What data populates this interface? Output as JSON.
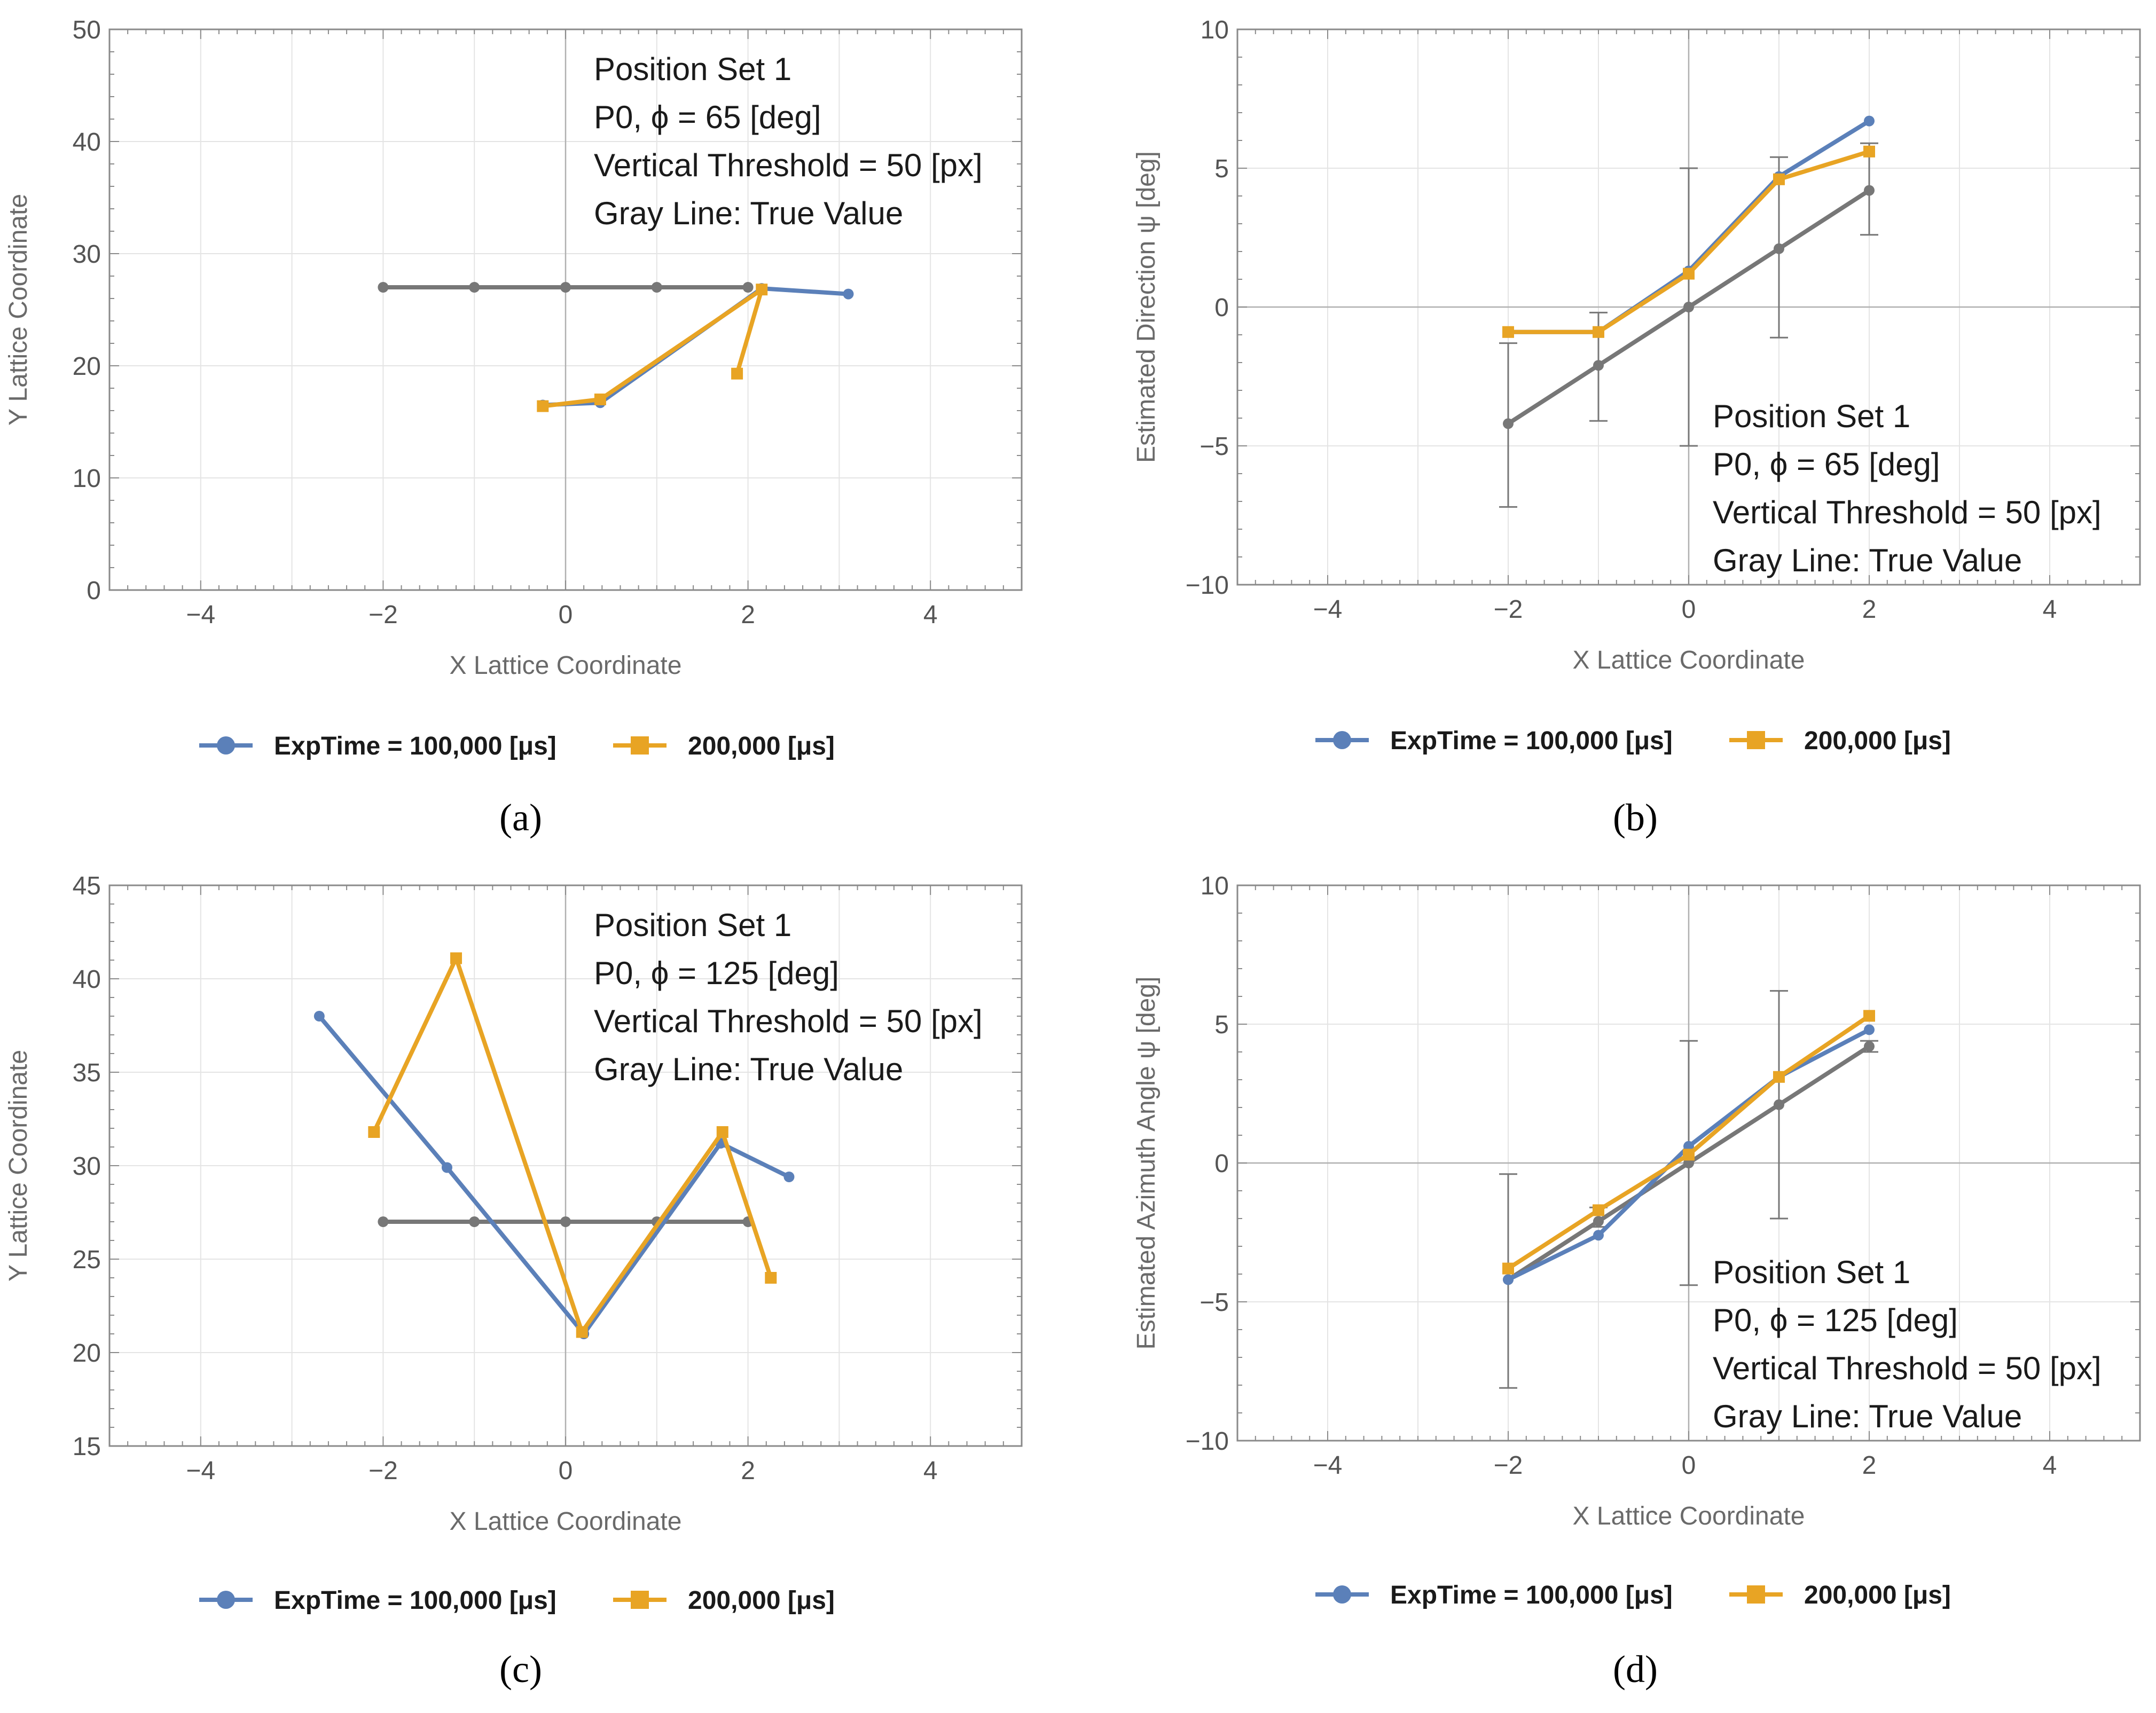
{
  "colors": {
    "series1": "#5b80b9",
    "series2": "#e8a424",
    "truth": "#777777",
    "grid": "#e4e4e4",
    "zero": "#b0b0b0",
    "frame": "#8a8a8a"
  },
  "legend": {
    "series1": "ExpTime = 100,000 [μs]",
    "series2": "200,000 [μs]"
  },
  "chart_data": [
    {
      "id": "a",
      "type": "line",
      "caption": "(a)",
      "xlabel": "X Lattice Coordinate",
      "ylabel": "Y Lattice Coordinate",
      "xlim": [
        -5,
        5
      ],
      "ylim": [
        0,
        50
      ],
      "xticks": [
        -4,
        -2,
        0,
        2,
        4
      ],
      "yticks": [
        0,
        10,
        20,
        30,
        40,
        50
      ],
      "annotation": [
        "Position Set 1",
        "P0, ϕ = 65 [deg]",
        "Vertical Threshold = 50 [px]",
        "Gray Line: True Value"
      ],
      "annotation_placement": "top-right",
      "series": [
        {
          "name": "Gray Line: True Value",
          "key": "truth",
          "marker": "circle",
          "x": [
            -2,
            -1,
            0,
            1,
            2
          ],
          "y": [
            27,
            27,
            27,
            27,
            27
          ]
        },
        {
          "name": "ExpTime = 100,000 [μs]",
          "key": "series1",
          "marker": "circle",
          "x": [
            -0.25,
            0.38,
            2.15,
            3.1
          ],
          "y": [
            16.5,
            16.7,
            26.9,
            26.4
          ]
        },
        {
          "name": "200,000 [μs]",
          "key": "series2",
          "marker": "square",
          "x": [
            -0.25,
            0.38,
            2.15,
            1.88
          ],
          "y": [
            16.4,
            17.0,
            26.8,
            19.3
          ]
        }
      ]
    },
    {
      "id": "b",
      "type": "line",
      "caption": "(b)",
      "xlabel": "X Lattice Coordinate",
      "ylabel": "Estimated Direction ψ [deg]",
      "xlim": [
        -5,
        5
      ],
      "ylim": [
        -10,
        10
      ],
      "xticks": [
        -4,
        -2,
        0,
        2,
        4
      ],
      "yticks": [
        -10,
        -5,
        0,
        5,
        10
      ],
      "annotation": [
        "Position Set 1",
        "P0, ϕ = 65 [deg]",
        "Vertical Threshold = 50 [px]",
        "Gray Line: True Value"
      ],
      "annotation_placement": "bottom-right",
      "series": [
        {
          "name": "Gray Line: True Value",
          "key": "truth",
          "marker": "circle",
          "x": [
            -2,
            -1,
            0,
            1,
            2
          ],
          "y": [
            -4.2,
            -2.1,
            0,
            2.1,
            4.2
          ],
          "err_lo": [
            -7.2,
            -4.1,
            -5.0,
            -1.1,
            2.6
          ],
          "err_hi": [
            -1.3,
            -0.2,
            5.0,
            5.4,
            5.9
          ]
        },
        {
          "name": "ExpTime = 100,000 [μs]",
          "key": "series1",
          "marker": "circle",
          "x": [
            -2,
            -1,
            0,
            1,
            2
          ],
          "y": [
            -0.9,
            -0.9,
            1.3,
            4.7,
            6.7
          ]
        },
        {
          "name": "200,000 [μs]",
          "key": "series2",
          "marker": "square",
          "x": [
            -2,
            -1,
            0,
            1,
            2
          ],
          "y": [
            -0.9,
            -0.9,
            1.2,
            4.6,
            5.6
          ]
        }
      ]
    },
    {
      "id": "c",
      "type": "line",
      "caption": "(c)",
      "xlabel": "X Lattice Coordinate",
      "ylabel": "Y Lattice Coordinate",
      "xlim": [
        -5,
        5
      ],
      "ylim": [
        15,
        45
      ],
      "xticks": [
        -4,
        -2,
        0,
        2,
        4
      ],
      "yticks": [
        15,
        20,
        25,
        30,
        35,
        40,
        45
      ],
      "annotation": [
        "Position Set 1",
        "P0, ϕ = 125 [deg]",
        "Vertical Threshold = 50 [px]",
        "Gray Line: True Value"
      ],
      "annotation_placement": "top-right",
      "series": [
        {
          "name": "Gray Line: True Value",
          "key": "truth",
          "marker": "circle",
          "x": [
            -2,
            -1,
            0,
            1,
            2
          ],
          "y": [
            27,
            27,
            27,
            27,
            27
          ]
        },
        {
          "name": "ExpTime = 100,000 [μs]",
          "key": "series1",
          "marker": "circle",
          "x": [
            -2.7,
            -1.3,
            0.2,
            1.7,
            2.45
          ],
          "y": [
            38.0,
            29.9,
            21.0,
            31.2,
            29.4
          ]
        },
        {
          "name": "200,000 [μs]",
          "key": "series2",
          "marker": "square",
          "x": [
            -2.1,
            -1.2,
            0.18,
            1.72,
            2.25
          ],
          "y": [
            31.8,
            41.1,
            21.1,
            31.8,
            24.0
          ]
        }
      ]
    },
    {
      "id": "d",
      "type": "line",
      "caption": "(d)",
      "xlabel": "X Lattice Coordinate",
      "ylabel": "Estimated Azimuth Angle ψ [deg]",
      "xlim": [
        -5,
        5
      ],
      "ylim": [
        -10,
        10
      ],
      "xticks": [
        -4,
        -2,
        0,
        2,
        4
      ],
      "yticks": [
        -10,
        -5,
        0,
        5,
        10
      ],
      "annotation": [
        "Position Set 1",
        "P0, ϕ = 125 [deg]",
        "Vertical Threshold = 50 [px]",
        "Gray Line: True Value"
      ],
      "annotation_placement": "bottom-right",
      "series": [
        {
          "name": "Gray Line: True Value",
          "key": "truth",
          "marker": "circle",
          "x": [
            -2,
            -1,
            0,
            1,
            2
          ],
          "y": [
            -4.2,
            -2.1,
            0,
            2.1,
            4.2
          ],
          "err_lo": [
            -8.1,
            -2.3,
            -4.4,
            -2.0,
            4.0
          ],
          "err_hi": [
            -0.4,
            -1.6,
            4.4,
            6.2,
            4.4
          ]
        },
        {
          "name": "ExpTime = 100,000 [μs]",
          "key": "series1",
          "marker": "circle",
          "x": [
            -2,
            -1,
            0,
            1,
            2
          ],
          "y": [
            -4.2,
            -2.6,
            0.6,
            3.1,
            4.8
          ]
        },
        {
          "name": "200,000 [μs]",
          "key": "series2",
          "marker": "square",
          "x": [
            -2,
            -1,
            0,
            1,
            2
          ],
          "y": [
            -3.8,
            -1.7,
            0.3,
            3.1,
            5.3
          ]
        }
      ]
    }
  ]
}
